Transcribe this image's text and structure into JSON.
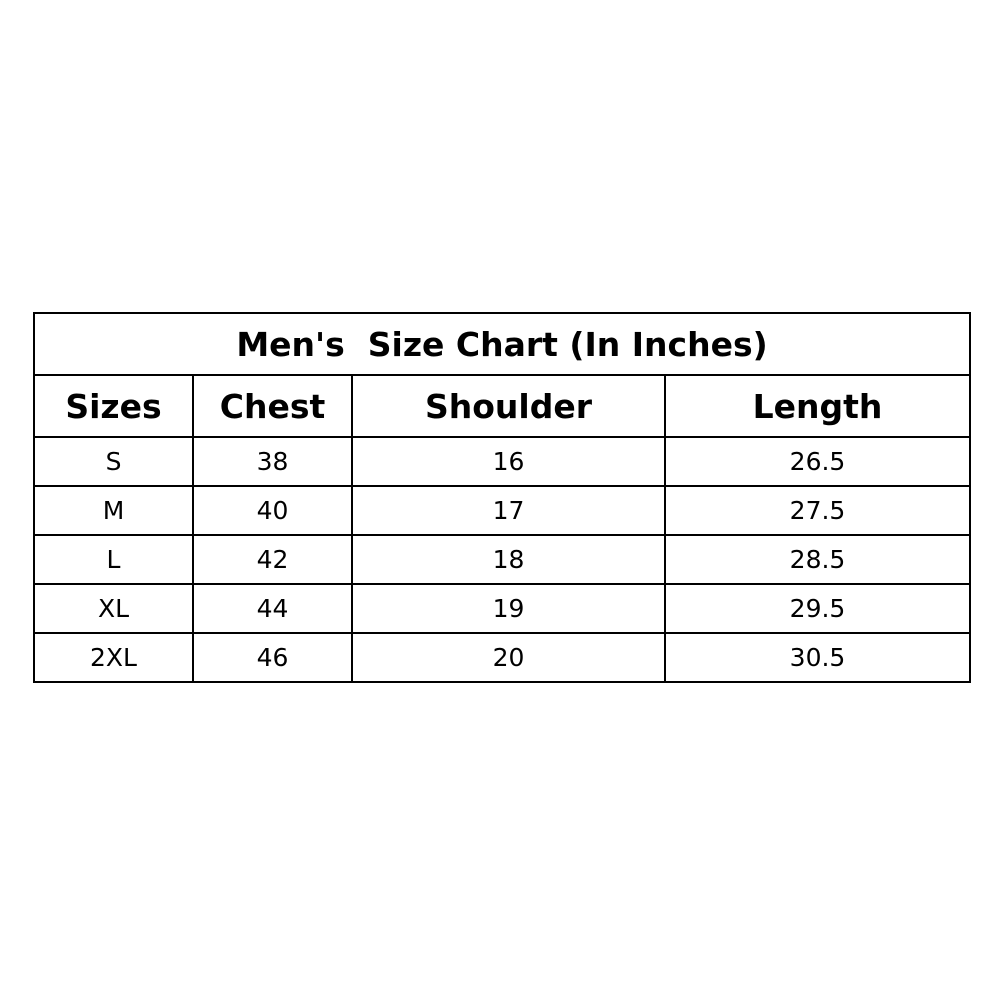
{
  "title": "Men's  Size Chart (In Inches)",
  "headers": [
    "Sizes",
    "Chest",
    "Shoulder",
    "Length"
  ],
  "rows": [
    [
      "S",
      "38",
      "16",
      "26.5"
    ],
    [
      "M",
      "40",
      "17",
      "27.5"
    ],
    [
      "L",
      "42",
      "18",
      "28.5"
    ],
    [
      "XL",
      "44",
      "19",
      "29.5"
    ],
    [
      "2XL",
      "46",
      "20",
      "30.5"
    ]
  ]
}
